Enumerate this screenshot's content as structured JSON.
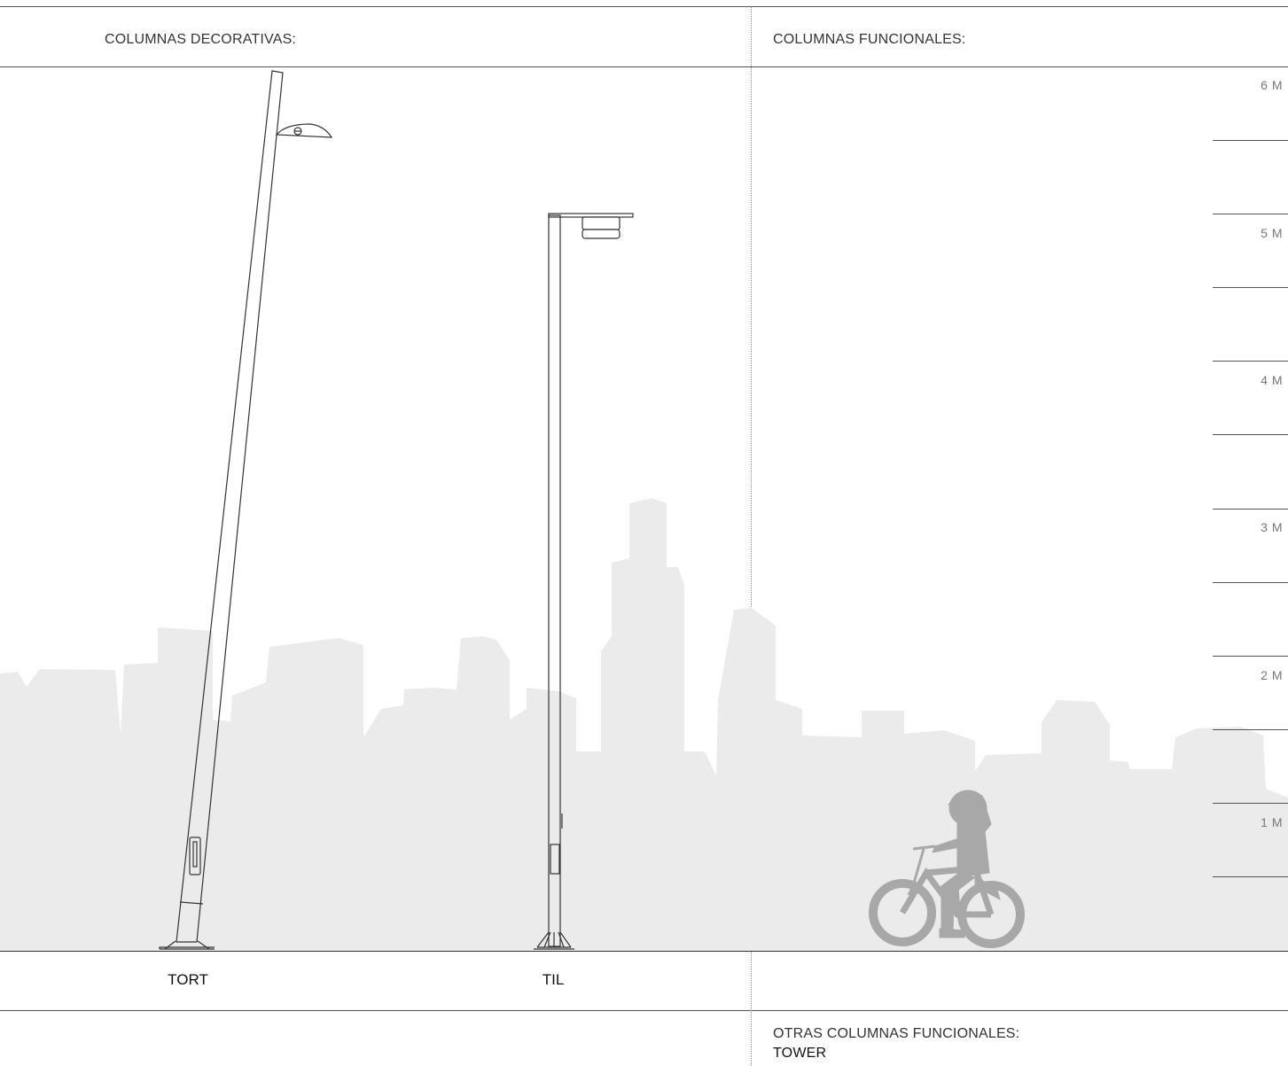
{
  "headers": {
    "decorative": "COLUMNAS DECORATIVAS:",
    "functional": "COLUMNAS FUNCIONALES:",
    "other": "OTRAS COLUMNAS FUNCIONALES:",
    "other_item": "TOWER"
  },
  "columns": [
    {
      "name": "TORT"
    },
    {
      "name": "TIL"
    }
  ],
  "scale": {
    "unit": "M",
    "labels": [
      "6 M",
      "5 M",
      "4 M",
      "3 M",
      "2 M",
      "1 M"
    ]
  },
  "colors": {
    "skyline": "#ebebeb",
    "silhouette": "#a8a8a8",
    "line": "#333333"
  }
}
